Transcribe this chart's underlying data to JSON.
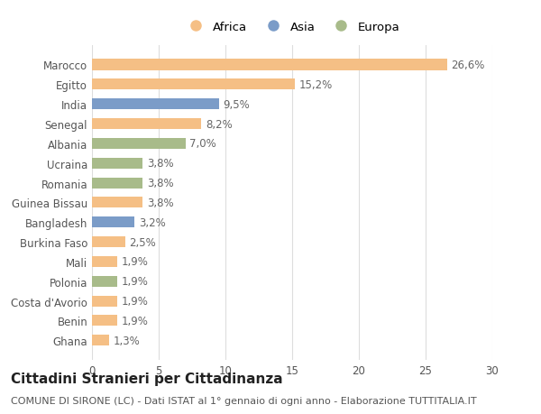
{
  "categories": [
    "Marocco",
    "Egitto",
    "India",
    "Senegal",
    "Albania",
    "Ucraina",
    "Romania",
    "Guinea Bissau",
    "Bangladesh",
    "Burkina Faso",
    "Mali",
    "Polonia",
    "Costa d'Avorio",
    "Benin",
    "Ghana"
  ],
  "values": [
    26.6,
    15.2,
    9.5,
    8.2,
    7.0,
    3.8,
    3.8,
    3.8,
    3.2,
    2.5,
    1.9,
    1.9,
    1.9,
    1.9,
    1.3
  ],
  "labels": [
    "26,6%",
    "15,2%",
    "9,5%",
    "8,2%",
    "7,0%",
    "3,8%",
    "3,8%",
    "3,8%",
    "3,2%",
    "2,5%",
    "1,9%",
    "1,9%",
    "1,9%",
    "1,9%",
    "1,3%"
  ],
  "continents": [
    "Africa",
    "Africa",
    "Asia",
    "Africa",
    "Europa",
    "Europa",
    "Europa",
    "Africa",
    "Asia",
    "Africa",
    "Africa",
    "Europa",
    "Africa",
    "Africa",
    "Africa"
  ],
  "colors": {
    "Africa": "#F5BF85",
    "Asia": "#7B9CC8",
    "Europa": "#A8BB8A"
  },
  "legend_entries": [
    "Africa",
    "Asia",
    "Europa"
  ],
  "xlim": [
    0,
    30
  ],
  "xticks": [
    0,
    5,
    10,
    15,
    20,
    25,
    30
  ],
  "title": "Cittadini Stranieri per Cittadinanza",
  "subtitle": "COMUNE DI SIRONE (LC) - Dati ISTAT al 1° gennaio di ogni anno - Elaborazione TUTTITALIA.IT",
  "background_color": "#ffffff",
  "bar_height": 0.55,
  "label_fontsize": 8.5,
  "tick_fontsize": 8.5,
  "title_fontsize": 11,
  "subtitle_fontsize": 8
}
